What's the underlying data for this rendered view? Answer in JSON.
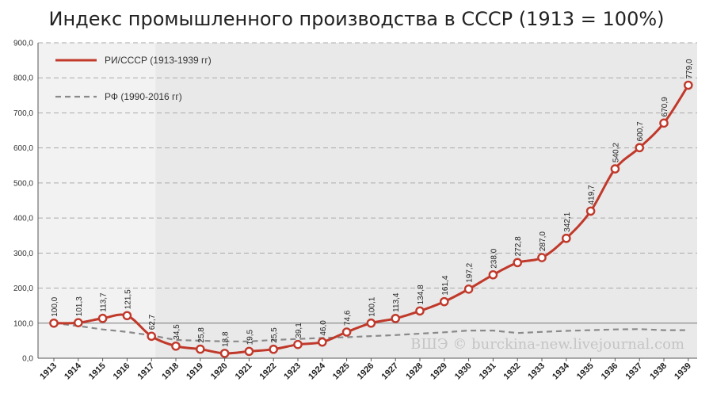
{
  "chart_data": {
    "type": "line",
    "title": "Индекс промышленного производства в СССР (1913 = 100%)",
    "xlabel": "",
    "ylabel": "",
    "ylim": [
      0,
      900
    ],
    "y_ticks": [
      "0,0",
      "100,0",
      "200,0",
      "300,0",
      "400,0",
      "500,0",
      "600,0",
      "700,0",
      "800,0",
      "900,0"
    ],
    "categories": [
      "1913",
      "1914",
      "1915",
      "1916",
      "1917",
      "1918",
      "1919",
      "1920",
      "1921",
      "1922",
      "1923",
      "1924",
      "1925",
      "1926",
      "1927",
      "1928",
      "1929",
      "1930",
      "1931",
      "1932",
      "1933",
      "1934",
      "1935",
      "1936",
      "1937",
      "1938",
      "1939"
    ],
    "grid": true,
    "legend_position": "top-left",
    "series": [
      {
        "name": "РИ/СССР (1913-1939 гг)",
        "color": "#c0392b",
        "style": "solid",
        "values": [
          100.0,
          101.3,
          113.7,
          121.5,
          62.7,
          34.5,
          25.8,
          13.8,
          19.5,
          25.5,
          39.1,
          46.0,
          74.6,
          100.1,
          113.4,
          134.8,
          161.4,
          197.2,
          238.0,
          272.8,
          287.0,
          342.1,
          419.7,
          540.2,
          600.7,
          670.9,
          779.0
        ],
        "labels": [
          "100,0",
          "101,3",
          "113,7",
          "121,5",
          "62,7",
          "34,5",
          "25,8",
          "13,8",
          "19,5",
          "25,5",
          "39,1",
          "46,0",
          "74,6",
          "100,1",
          "113,4",
          "134,8",
          "161,4",
          "197,2",
          "238,0",
          "272,8",
          "287,0",
          "342,1",
          "419,7",
          "540,2",
          "600,7",
          "670,9",
          "779,0"
        ]
      },
      {
        "name": "РФ (1990-2016 гг)",
        "color": "#8a8a8a",
        "style": "dashed",
        "values": [
          100,
          92,
          82,
          75,
          65,
          52,
          50,
          48,
          48,
          52,
          55,
          58,
          60,
          63,
          66,
          70,
          74,
          79,
          79,
          72,
          75,
          78,
          80,
          82,
          83,
          80,
          80
        ]
      }
    ],
    "watermark": "ВШЭ © burckina-new.livejournal.com",
    "colors": {
      "plot_bg": "#e9e9e9",
      "plot_bg_early": "#f2f2f2",
      "grid": "#aaaaaa"
    }
  }
}
